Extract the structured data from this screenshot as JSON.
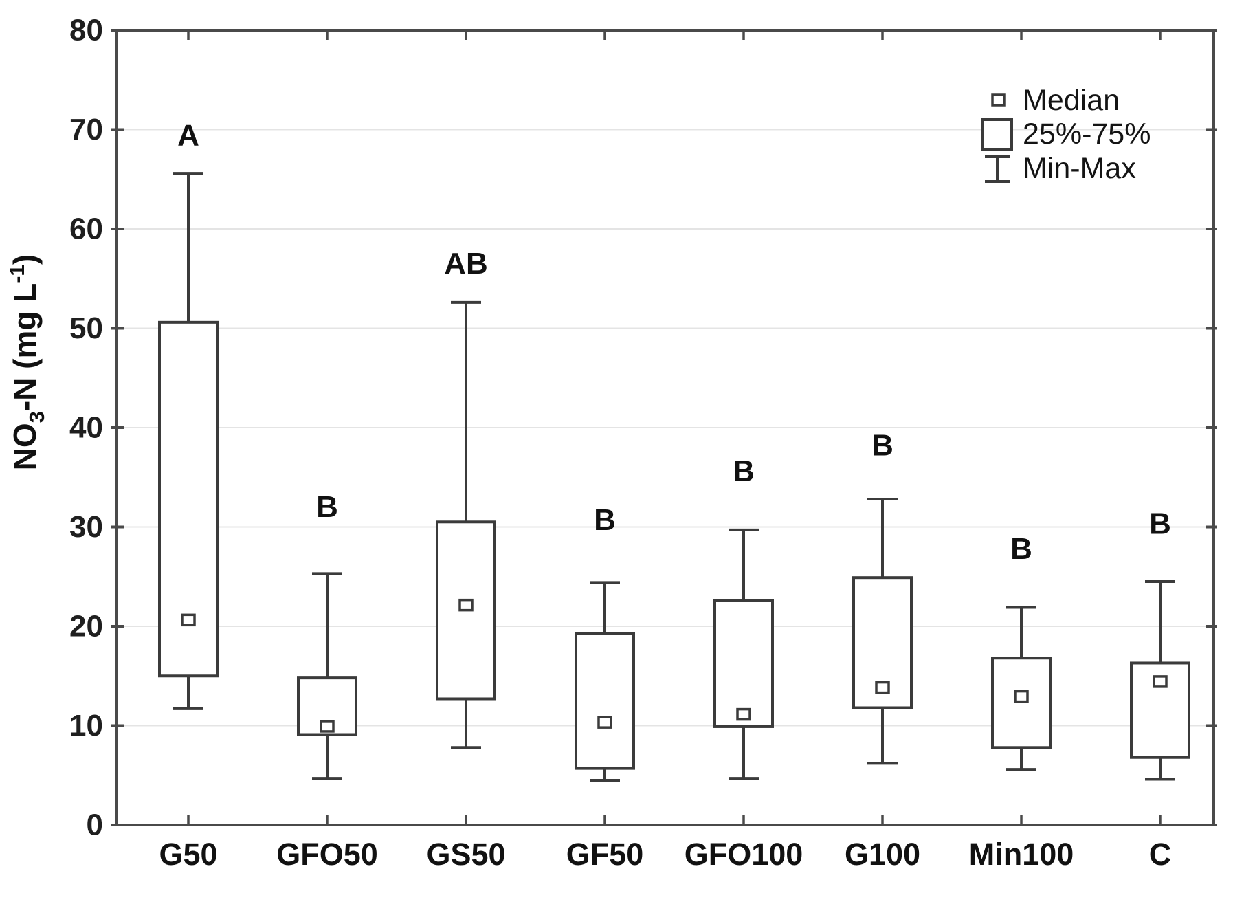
{
  "chart_data": {
    "type": "box",
    "title": "",
    "ylabel": "NO3-N (mg L-1)",
    "ylabel_parts": {
      "p1": "NO",
      "sub": "3",
      "p2": "-N (mg L",
      "sup": "-1",
      "p3": ")"
    },
    "xlabel": "",
    "ylim": [
      0,
      80
    ],
    "yticks": [
      0,
      10,
      20,
      30,
      40,
      50,
      60,
      70,
      80
    ],
    "grid": true,
    "legend_position": "top-right",
    "legend": [
      "Median",
      "25%-75%",
      "Min-Max"
    ],
    "categories": [
      "G50",
      "GFO50",
      "GS50",
      "GF50",
      "GFO100",
      "G100",
      "Min100",
      "C"
    ],
    "series": [
      {
        "name": "G50",
        "min": 11.7,
        "q1": 15.0,
        "median": 20.6,
        "q3": 50.6,
        "max": 65.6,
        "sig_letter": "A",
        "sig_letter_y": 69.4
      },
      {
        "name": "GFO50",
        "min": 4.7,
        "q1": 9.1,
        "median": 9.9,
        "q3": 14.8,
        "max": 25.3,
        "sig_letter": "B",
        "sig_letter_y": 32.0
      },
      {
        "name": "GS50",
        "min": 7.8,
        "q1": 12.7,
        "median": 22.1,
        "q3": 30.5,
        "max": 52.6,
        "sig_letter": "AB",
        "sig_letter_y": 56.5
      },
      {
        "name": "GF50",
        "min": 4.5,
        "q1": 5.7,
        "median": 10.3,
        "q3": 19.3,
        "max": 24.4,
        "sig_letter": "B",
        "sig_letter_y": 30.7
      },
      {
        "name": "GFO100",
        "min": 4.7,
        "q1": 9.9,
        "median": 11.1,
        "q3": 22.6,
        "max": 29.7,
        "sig_letter": "B",
        "sig_letter_y": 35.6
      },
      {
        "name": "G100",
        "min": 6.2,
        "q1": 11.8,
        "median": 13.8,
        "q3": 24.9,
        "max": 32.8,
        "sig_letter": "B",
        "sig_letter_y": 38.2
      },
      {
        "name": "Min100",
        "min": 5.6,
        "q1": 7.8,
        "median": 12.9,
        "q3": 16.8,
        "max": 21.9,
        "sig_letter": "B",
        "sig_letter_y": 27.8
      },
      {
        "name": "C",
        "min": 4.6,
        "q1": 6.8,
        "median": 14.4,
        "q3": 16.3,
        "max": 24.5,
        "sig_letter": "B",
        "sig_letter_y": 30.3
      }
    ],
    "colors": {
      "stroke": "#3b3b3b",
      "frame": "#4a4a4a",
      "grid": "#e4e4e4",
      "text": "#141414",
      "background": "#ffffff"
    }
  }
}
